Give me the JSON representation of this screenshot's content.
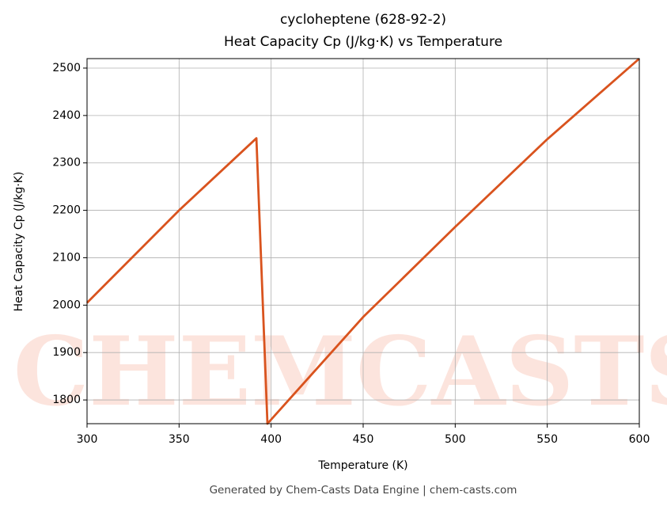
{
  "chart_data": {
    "type": "line",
    "title": "cycloheptene (628-92-2)",
    "subtitle": "Heat Capacity Cp (J/kg·K) vs Temperature",
    "xlabel": "Temperature (K)",
    "ylabel": "Heat Capacity Cp (J/kg·K)",
    "footer": "Generated by Chem-Casts Data Engine | chem-casts.com",
    "watermark": "CHEMCASTS",
    "series": [
      {
        "name": "Cp",
        "color": "#d9531e",
        "x": [
          300,
          350,
          392,
          398,
          450,
          500,
          550,
          600
        ],
        "values": [
          2005,
          2200,
          2352,
          1750,
          1975,
          2165,
          2350,
          2520
        ]
      }
    ],
    "xlim": [
      300,
      600
    ],
    "xticks": [
      300,
      350,
      400,
      450,
      500,
      550,
      600
    ],
    "ylim": [
      1750,
      2520
    ],
    "yticks": [
      1800,
      1900,
      2000,
      2100,
      2200,
      2300,
      2400,
      2500
    ],
    "grid": true
  }
}
